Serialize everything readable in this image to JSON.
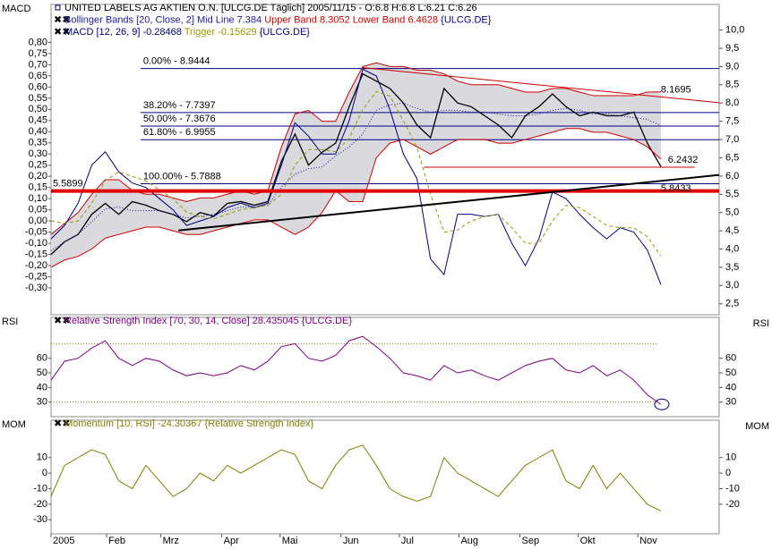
{
  "chart_data": [
    {
      "type": "line",
      "panel_label": "MACD",
      "symbol": "{ULCG.DE}",
      "xlim": [
        0,
        49.3
      ],
      "x": [
        0,
        1,
        2,
        3,
        4,
        5,
        6,
        7,
        8,
        9,
        10,
        11,
        12,
        13,
        14,
        15,
        16,
        17,
        18,
        19,
        20,
        21,
        22,
        23,
        24,
        25,
        26,
        27,
        28,
        29,
        30,
        31,
        32,
        33,
        34,
        35,
        36,
        37,
        38,
        39,
        40,
        41,
        42,
        43,
        44,
        45
      ],
      "ylim": [
        -0.42,
        0.97
      ],
      "yticks": [
        {
          "value": 0.8,
          "label": "0,80"
        },
        {
          "value": 0.75,
          "label": "0,75"
        },
        {
          "value": 0.7,
          "label": "0,70"
        },
        {
          "value": 0.65,
          "label": "0,65"
        },
        {
          "value": 0.6,
          "label": "0,60"
        },
        {
          "value": 0.55,
          "label": "0,55"
        },
        {
          "value": 0.5,
          "label": "0,50"
        },
        {
          "value": 0.45,
          "label": "0,45"
        },
        {
          "value": 0.4,
          "label": "0,40"
        },
        {
          "value": 0.35,
          "label": "0,35"
        },
        {
          "value": 0.3,
          "label": "0,30"
        },
        {
          "value": 0.25,
          "label": "0,25"
        },
        {
          "value": 0.2,
          "label": "0,20"
        },
        {
          "value": 0.15,
          "label": "0,15"
        },
        {
          "value": 0.1,
          "label": "0,10"
        },
        {
          "value": 0.05,
          "label": "0,05"
        },
        {
          "value": 0,
          "label": "0,00"
        },
        {
          "value": -0.05,
          "label": "-0,05"
        },
        {
          "value": -0.1,
          "label": "-0,10"
        },
        {
          "value": -0.15,
          "label": "-0,15"
        },
        {
          "value": -0.2,
          "label": "-0,20"
        },
        {
          "value": -0.25,
          "label": "-0,25"
        },
        {
          "value": -0.3,
          "label": "-0,30"
        }
      ],
      "y2lim": [
        2.2,
        10.7
      ],
      "y2ticks": [
        {
          "value": 10,
          "label": "10,0"
        },
        {
          "value": 9.5,
          "label": "9,5"
        },
        {
          "value": 9,
          "label": "9,0"
        },
        {
          "value": 8.5,
          "label": "8,5"
        },
        {
          "value": 8,
          "label": "8,0"
        },
        {
          "value": 7.5,
          "label": "7,5"
        },
        {
          "value": 7,
          "label": "7,0"
        },
        {
          "value": 6.5,
          "label": "6,5"
        },
        {
          "value": 6,
          "label": "6,0"
        },
        {
          "value": 5.5,
          "label": "5,5"
        },
        {
          "value": 5,
          "label": "5,0"
        },
        {
          "value": 4.5,
          "label": "4,5"
        },
        {
          "value": 4,
          "label": "4,0"
        },
        {
          "value": 3.5,
          "label": "3,5"
        },
        {
          "value": 3,
          "label": "3,0"
        },
        {
          "value": 2.5,
          "label": "2,5"
        }
      ],
      "band_color": "#d9d9de",
      "series": [
        {
          "name": "UNITED LABELS AG AKTIEN O.N. [ULCG.DE  Täglich] 2005/11/15 - O:6.8 H:6.8 L:6.21 C:6.26",
          "color": "#000000",
          "axis": "y2",
          "values": [
            3.85,
            4.2,
            4.4,
            4.95,
            5.25,
            4.95,
            5.3,
            5.2,
            5.05,
            4.95,
            4.75,
            5.0,
            4.9,
            5.25,
            5.3,
            5.2,
            5.3,
            6.4,
            7.15,
            6.3,
            6.65,
            6.9,
            7.9,
            8.8,
            8.6,
            8.4,
            8.0,
            7.4,
            7.05,
            8.4,
            8.0,
            7.9,
            7.65,
            7.4,
            7.05,
            7.65,
            7.9,
            8.25,
            7.9,
            7.65,
            7.75,
            7.65,
            7.65,
            7.75,
            6.9,
            6.26
          ]
        },
        {
          "name": "Bollinger Bands [20, Close, 2] Mid Line 7.384",
          "color": "#1a1aa0",
          "axis": "y2",
          "dash": "1,2",
          "values": [
            3.95,
            4.2,
            4.4,
            4.75,
            5.1,
            5.15,
            5.05,
            5.05,
            5.05,
            4.95,
            4.85,
            4.9,
            4.95,
            5.05,
            5.15,
            5.15,
            5.2,
            5.7,
            6.05,
            6.2,
            6.25,
            6.55,
            6.8,
            7.15,
            7.8,
            7.95,
            8.0,
            7.85,
            7.75,
            7.8,
            7.8,
            7.75,
            7.75,
            7.7,
            7.65,
            7.65,
            7.7,
            7.8,
            7.85,
            7.8,
            7.7,
            7.7,
            7.65,
            7.6,
            7.55,
            7.384
          ]
        },
        {
          "name": "Upper Band 8.3052",
          "color": "#d00000",
          "axis": "y2",
          "values": [
            4.4,
            4.7,
            5.0,
            5.5,
            5.9,
            5.9,
            5.6,
            5.5,
            5.5,
            5.4,
            5.3,
            5.4,
            5.4,
            5.5,
            5.6,
            5.5,
            5.6,
            6.8,
            7.7,
            7.8,
            7.5,
            7.5,
            8.3,
            9.0,
            9.1,
            9.0,
            9.0,
            8.9,
            8.9,
            8.8,
            8.6,
            8.5,
            8.5,
            8.5,
            8.4,
            8.3,
            8.3,
            8.4,
            8.4,
            8.3,
            8.2,
            8.2,
            8.2,
            8.2,
            8.3,
            8.3052
          ]
        },
        {
          "name": "Lower Band 6.4628",
          "color": "#d00000",
          "axis": "y2",
          "values": [
            3.5,
            3.7,
            3.8,
            4.0,
            4.3,
            4.4,
            4.5,
            4.6,
            4.6,
            4.5,
            4.4,
            4.4,
            4.5,
            4.6,
            4.7,
            4.8,
            4.8,
            4.6,
            4.4,
            4.6,
            5.0,
            5.6,
            5.3,
            5.3,
            6.5,
            6.9,
            7.0,
            6.8,
            6.6,
            6.8,
            7.0,
            7.0,
            7.0,
            6.9,
            6.9,
            7.0,
            7.1,
            7.2,
            7.3,
            7.3,
            7.2,
            7.2,
            7.1,
            7.0,
            6.8,
            6.4628
          ]
        },
        {
          "name": "MACD [12, 26, 9] -0.28468",
          "color": "#000080",
          "axis": "y",
          "values": [
            -0.08,
            -0.02,
            0.08,
            0.25,
            0.31,
            0.22,
            0.17,
            0.15,
            0.1,
            0.05,
            -0.02,
            0.0,
            0.02,
            0.06,
            0.08,
            0.06,
            0.08,
            0.25,
            0.44,
            0.38,
            0.3,
            0.3,
            0.45,
            0.68,
            0.65,
            0.5,
            0.3,
            0.19,
            -0.17,
            -0.24,
            0.03,
            0.03,
            0.02,
            0.03,
            -0.1,
            -0.2,
            -0.08,
            0.13,
            0.1,
            0.03,
            -0.03,
            -0.08,
            -0.03,
            -0.05,
            -0.13,
            -0.28468
          ]
        },
        {
          "name": "Trigger -0.15629",
          "color": "#9a9a00",
          "axis": "y",
          "dash": "4,3",
          "values": [
            0.0,
            -0.01,
            0.0,
            0.08,
            0.18,
            0.22,
            0.2,
            0.18,
            0.14,
            0.1,
            0.04,
            0.02,
            0.01,
            0.03,
            0.05,
            0.06,
            0.07,
            0.12,
            0.25,
            0.32,
            0.32,
            0.31,
            0.37,
            0.5,
            0.58,
            0.56,
            0.45,
            0.33,
            0.12,
            -0.05,
            -0.04,
            0.0,
            0.02,
            0.03,
            -0.03,
            -0.1,
            -0.1,
            0.0,
            0.07,
            0.06,
            0.02,
            -0.02,
            -0.03,
            -0.03,
            -0.07,
            -0.15629
          ]
        }
      ],
      "fib_start": 6.6,
      "fib_color": "#000080",
      "fib_levels": [
        {
          "value": 8.9444,
          "label": "0.00% - 8.9444"
        },
        {
          "value": 7.7397,
          "label": "38.20% - 7.7397"
        },
        {
          "value": 7.3676,
          "label": "50.00% - 7.3676"
        },
        {
          "value": 6.9955,
          "label": "61.80% - 6.9955"
        },
        {
          "value": 5.7888,
          "label": "100.00% - 5.7888"
        }
      ],
      "hlines": [
        {
          "value": 5.5899,
          "label": "5.5899",
          "color": "#e00000",
          "width": 4,
          "x": [
            0,
            49.3
          ]
        },
        {
          "value": 6.2432,
          "label": "6.2432",
          "color": "#cc0000",
          "width": 1,
          "x": [
            27.5,
            47.5
          ]
        }
      ],
      "trendlines": [
        {
          "label": "8.1695",
          "color": "#cc0000",
          "x": [
            23,
            49.3
          ],
          "y": [
            8.97,
            8.01
          ]
        },
        {
          "label": "5.8433",
          "color": "#000000",
          "x": [
            9.4,
            49.3
          ],
          "y": [
            4.51,
            6.03
          ]
        }
      ]
    },
    {
      "type": "line",
      "panel_label": "RSI",
      "xlim": [
        0,
        49.3
      ],
      "x": [
        0,
        1,
        2,
        3,
        4,
        5,
        6,
        7,
        8,
        9,
        10,
        11,
        12,
        13,
        14,
        15,
        16,
        17,
        18,
        19,
        20,
        21,
        22,
        23,
        24,
        25,
        26,
        27,
        28,
        29,
        30,
        31,
        32,
        33,
        34,
        35,
        36,
        37,
        38,
        39,
        40,
        41,
        42,
        43,
        44,
        45
      ],
      "ylim": [
        20,
        88
      ],
      "yticks": [
        60,
        50,
        40,
        30
      ],
      "y2lim": [
        20,
        88
      ],
      "y2ticks": [
        60,
        50,
        40,
        30
      ],
      "levels": [
        70,
        30
      ],
      "series": [
        {
          "name": "Relative Strength Index [70, 30, 14, Close] 28.435045 {ULCG.DE}",
          "color": "#800080",
          "axis": "y",
          "values": [
            45,
            58,
            60,
            67,
            72,
            60,
            55,
            60,
            58,
            52,
            48,
            50,
            48,
            50,
            55,
            52,
            58,
            68,
            70,
            60,
            58,
            62,
            72,
            75,
            68,
            60,
            50,
            48,
            45,
            55,
            50,
            52,
            48,
            45,
            50,
            55,
            58,
            60,
            52,
            50,
            55,
            48,
            52,
            45,
            35,
            28.435045
          ]
        }
      ]
    },
    {
      "type": "line",
      "panel_label": "MOM",
      "xlim": [
        0,
        49.3
      ],
      "x": [
        0,
        1,
        2,
        3,
        4,
        5,
        6,
        7,
        8,
        9,
        10,
        11,
        12,
        13,
        14,
        15,
        16,
        17,
        18,
        19,
        20,
        21,
        22,
        23,
        24,
        25,
        26,
        27,
        28,
        29,
        30,
        31,
        32,
        33,
        34,
        35,
        36,
        37,
        38,
        39,
        40,
        41,
        42,
        43,
        44,
        45
      ],
      "ylim": [
        -39,
        34
      ],
      "yticks": [
        10,
        0,
        -10,
        -20,
        -30
      ],
      "y2lim": [
        -39,
        34
      ],
      "y2ticks": [
        10,
        0,
        -10,
        -20
      ],
      "xticks": [
        {
          "value": 0,
          "label": "2005"
        },
        {
          "value": 4.1,
          "label": "Feb"
        },
        {
          "value": 8.1,
          "label": "Mrz"
        },
        {
          "value": 12.6,
          "label": "Apr"
        },
        {
          "value": 16.9,
          "label": "Mai"
        },
        {
          "value": 21.4,
          "label": "Jun"
        },
        {
          "value": 25.7,
          "label": "Jul"
        },
        {
          "value": 30.1,
          "label": "Aug"
        },
        {
          "value": 34.6,
          "label": "Sep"
        },
        {
          "value": 38.9,
          "label": "Okt"
        },
        {
          "value": 43.3,
          "label": "Nov"
        }
      ],
      "series": [
        {
          "name": "Momentum [10, RSI] -24.30367 {Relative Strength Index}",
          "color": "#808000",
          "axis": "y",
          "values": [
            -15,
            5,
            10,
            15,
            12,
            -5,
            -10,
            5,
            -5,
            -15,
            -10,
            0,
            -5,
            5,
            0,
            5,
            10,
            15,
            12,
            -5,
            -10,
            5,
            15,
            18,
            5,
            -10,
            -15,
            -18,
            -15,
            10,
            0,
            -5,
            -10,
            -15,
            -5,
            5,
            10,
            15,
            -5,
            -10,
            5,
            -10,
            0,
            -10,
            -20,
            -24.30367
          ]
        }
      ]
    }
  ]
}
